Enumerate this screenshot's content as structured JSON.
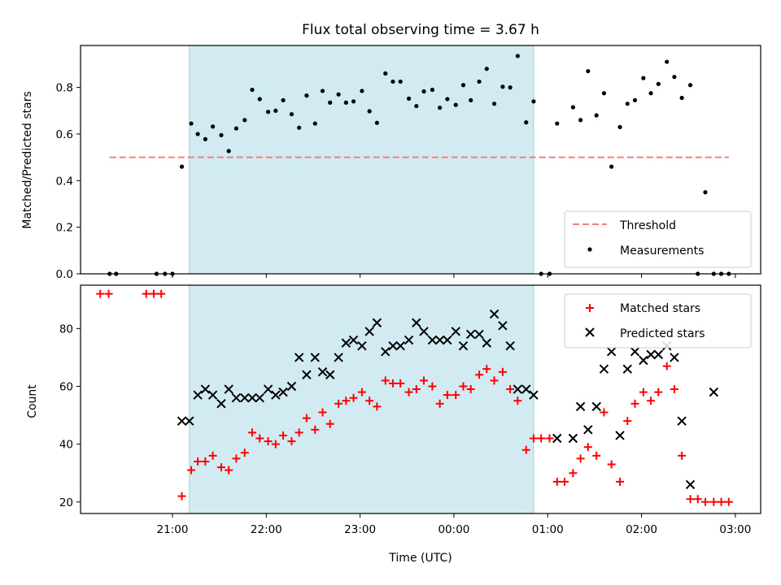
{
  "chart_data": {
    "title": "Flux total observing time = 3.67 h",
    "xlabel": "Time (UTC)",
    "x_unit": "hours of day, values above 24 are past midnight",
    "xlim": [
      20.02,
      27.27
    ],
    "xticks": [
      {
        "x": 21,
        "label": "21:00"
      },
      {
        "x": 22,
        "label": "22:00"
      },
      {
        "x": 23,
        "label": "23:00"
      },
      {
        "x": 24,
        "label": "00:00"
      },
      {
        "x": 25,
        "label": "01:00"
      },
      {
        "x": 26,
        "label": "02:00"
      },
      {
        "x": 27,
        "label": "03:00"
      }
    ],
    "observing_span": {
      "start": 21.18,
      "end": 24.85,
      "color": "#add8e6"
    },
    "panels": [
      {
        "type": "scatter",
        "ylabel": "Matched/Predicted stars",
        "ylim": [
          0,
          0.98
        ],
        "yticks": [
          "0.0",
          "0.2",
          "0.4",
          "0.6",
          "0.8"
        ],
        "yticks_values": [
          0,
          0.2,
          0.4,
          0.6,
          0.8
        ],
        "threshold": {
          "name": "Threshold",
          "value": 0.5,
          "x_start": 20.33,
          "x_end": 26.93,
          "color": "#f08080"
        },
        "legend": {
          "position": "lower-right",
          "entries": [
            "Threshold",
            "Measurements"
          ]
        },
        "series": [
          {
            "name": "Measurements",
            "color": "#000000",
            "points": [
              [
                20.33,
                0.0
              ],
              [
                20.4,
                0.0
              ],
              [
                20.83,
                0.0
              ],
              [
                20.92,
                0.0
              ],
              [
                21.0,
                0.0
              ],
              [
                21.1,
                0.46
              ],
              [
                21.2,
                0.645
              ],
              [
                21.27,
                0.6
              ],
              [
                21.35,
                0.578
              ],
              [
                21.43,
                0.632
              ],
              [
                21.52,
                0.595
              ],
              [
                21.6,
                0.527
              ],
              [
                21.68,
                0.624
              ],
              [
                21.77,
                0.66
              ],
              [
                21.85,
                0.79
              ],
              [
                21.93,
                0.75
              ],
              [
                22.02,
                0.695
              ],
              [
                22.1,
                0.7
              ],
              [
                22.18,
                0.745
              ],
              [
                22.27,
                0.685
              ],
              [
                22.35,
                0.627
              ],
              [
                22.43,
                0.765
              ],
              [
                22.52,
                0.645
              ],
              [
                22.6,
                0.785
              ],
              [
                22.68,
                0.735
              ],
              [
                22.77,
                0.77
              ],
              [
                22.85,
                0.735
              ],
              [
                22.93,
                0.74
              ],
              [
                23.02,
                0.785
              ],
              [
                23.1,
                0.698
              ],
              [
                23.18,
                0.648
              ],
              [
                23.27,
                0.86
              ],
              [
                23.35,
                0.825
              ],
              [
                23.43,
                0.825
              ],
              [
                23.52,
                0.752
              ],
              [
                23.6,
                0.72
              ],
              [
                23.68,
                0.783
              ],
              [
                23.77,
                0.79
              ],
              [
                23.85,
                0.713
              ],
              [
                23.93,
                0.75
              ],
              [
                24.02,
                0.725
              ],
              [
                24.1,
                0.81
              ],
              [
                24.18,
                0.745
              ],
              [
                24.27,
                0.825
              ],
              [
                24.35,
                0.88
              ],
              [
                24.43,
                0.73
              ],
              [
                24.52,
                0.803
              ],
              [
                24.6,
                0.8
              ],
              [
                24.68,
                0.935
              ],
              [
                24.77,
                0.65
              ],
              [
                24.85,
                0.74
              ],
              [
                24.93,
                0.0
              ],
              [
                25.02,
                0.0
              ],
              [
                25.1,
                0.645
              ],
              [
                25.27,
                0.715
              ],
              [
                25.35,
                0.66
              ],
              [
                25.43,
                0.87
              ],
              [
                25.52,
                0.68
              ],
              [
                25.6,
                0.775
              ],
              [
                25.68,
                0.46
              ],
              [
                25.77,
                0.63
              ],
              [
                25.85,
                0.73
              ],
              [
                25.93,
                0.745
              ],
              [
                26.02,
                0.84
              ],
              [
                26.1,
                0.775
              ],
              [
                26.18,
                0.815
              ],
              [
                26.27,
                0.91
              ],
              [
                26.35,
                0.845
              ],
              [
                26.43,
                0.755
              ],
              [
                26.52,
                0.81
              ],
              [
                26.6,
                0.0
              ],
              [
                26.68,
                0.35
              ],
              [
                26.77,
                0.0
              ],
              [
                26.85,
                0.0
              ],
              [
                26.93,
                0.0
              ]
            ]
          }
        ]
      },
      {
        "type": "scatter",
        "ylabel": "Count",
        "ylim": [
          16,
          95
        ],
        "yticks": [
          "20",
          "40",
          "60",
          "80"
        ],
        "yticks_values": [
          20,
          40,
          60,
          80
        ],
        "legend": {
          "position": "upper-right",
          "entries": [
            "Matched stars",
            "Predicted stars"
          ]
        },
        "series": [
          {
            "name": "Matched stars",
            "marker": "plus",
            "color": "#ff0000",
            "points": [
              [
                20.23,
                92
              ],
              [
                20.32,
                92
              ],
              [
                20.72,
                92
              ],
              [
                20.8,
                92
              ],
              [
                20.88,
                92
              ],
              [
                21.1,
                22
              ],
              [
                21.2,
                31
              ],
              [
                21.27,
                34
              ],
              [
                21.35,
                34
              ],
              [
                21.43,
                36
              ],
              [
                21.52,
                32
              ],
              [
                21.6,
                31
              ],
              [
                21.68,
                35
              ],
              [
                21.77,
                37
              ],
              [
                21.85,
                44
              ],
              [
                21.93,
                42
              ],
              [
                22.02,
                41
              ],
              [
                22.1,
                40
              ],
              [
                22.18,
                43
              ],
              [
                22.27,
                41
              ],
              [
                22.35,
                44
              ],
              [
                22.43,
                49
              ],
              [
                22.52,
                45
              ],
              [
                22.6,
                51
              ],
              [
                22.68,
                47
              ],
              [
                22.77,
                54
              ],
              [
                22.85,
                55
              ],
              [
                22.93,
                56
              ],
              [
                23.02,
                58
              ],
              [
                23.1,
                55
              ],
              [
                23.18,
                53
              ],
              [
                23.27,
                62
              ],
              [
                23.35,
                61
              ],
              [
                23.43,
                61
              ],
              [
                23.52,
                58
              ],
              [
                23.6,
                59
              ],
              [
                23.68,
                62
              ],
              [
                23.77,
                60
              ],
              [
                23.85,
                54
              ],
              [
                23.93,
                57
              ],
              [
                24.02,
                57
              ],
              [
                24.1,
                60
              ],
              [
                24.18,
                59
              ],
              [
                24.27,
                64
              ],
              [
                24.35,
                66
              ],
              [
                24.43,
                62
              ],
              [
                24.52,
                65
              ],
              [
                24.6,
                59
              ],
              [
                24.68,
                55
              ],
              [
                24.77,
                38
              ],
              [
                24.85,
                42
              ],
              [
                24.93,
                42
              ],
              [
                25.02,
                42
              ],
              [
                25.1,
                27
              ],
              [
                25.18,
                27
              ],
              [
                25.27,
                30
              ],
              [
                25.35,
                35
              ],
              [
                25.43,
                39
              ],
              [
                25.52,
                36
              ],
              [
                25.6,
                51
              ],
              [
                25.68,
                33
              ],
              [
                25.77,
                27
              ],
              [
                25.85,
                48
              ],
              [
                25.93,
                54
              ],
              [
                26.02,
                58
              ],
              [
                26.1,
                55
              ],
              [
                26.18,
                58
              ],
              [
                26.27,
                67
              ],
              [
                26.35,
                59
              ],
              [
                26.43,
                36
              ],
              [
                26.52,
                21
              ],
              [
                26.6,
                21
              ],
              [
                26.68,
                20
              ],
              [
                26.77,
                20
              ],
              [
                26.85,
                20
              ],
              [
                26.93,
                20
              ]
            ]
          },
          {
            "name": "Predicted stars",
            "marker": "x",
            "color": "#000000",
            "points": [
              [
                21.1,
                48
              ],
              [
                21.18,
                48
              ],
              [
                21.27,
                57
              ],
              [
                21.35,
                59
              ],
              [
                21.43,
                57
              ],
              [
                21.52,
                54
              ],
              [
                21.6,
                59
              ],
              [
                21.68,
                56
              ],
              [
                21.77,
                56
              ],
              [
                21.85,
                56
              ],
              [
                21.93,
                56
              ],
              [
                22.02,
                59
              ],
              [
                22.1,
                57
              ],
              [
                22.18,
                58
              ],
              [
                22.27,
                60
              ],
              [
                22.35,
                70
              ],
              [
                22.43,
                64
              ],
              [
                22.52,
                70
              ],
              [
                22.6,
                65
              ],
              [
                22.68,
                64
              ],
              [
                22.77,
                70
              ],
              [
                22.85,
                75
              ],
              [
                22.93,
                76
              ],
              [
                23.02,
                74
              ],
              [
                23.1,
                79
              ],
              [
                23.18,
                82
              ],
              [
                23.27,
                72
              ],
              [
                23.35,
                74
              ],
              [
                23.43,
                74
              ],
              [
                23.52,
                76
              ],
              [
                23.6,
                82
              ],
              [
                23.68,
                79
              ],
              [
                23.77,
                76
              ],
              [
                23.85,
                76
              ],
              [
                23.93,
                76
              ],
              [
                24.02,
                79
              ],
              [
                24.1,
                74
              ],
              [
                24.18,
                78
              ],
              [
                24.27,
                78
              ],
              [
                24.35,
                75
              ],
              [
                24.43,
                85
              ],
              [
                24.52,
                81
              ],
              [
                24.6,
                74
              ],
              [
                24.68,
                59
              ],
              [
                24.77,
                59
              ],
              [
                24.85,
                57
              ],
              [
                25.1,
                42
              ],
              [
                25.27,
                42
              ],
              [
                25.35,
                53
              ],
              [
                25.43,
                45
              ],
              [
                25.52,
                53
              ],
              [
                25.6,
                66
              ],
              [
                25.68,
                72
              ],
              [
                25.77,
                43
              ],
              [
                25.85,
                66
              ],
              [
                25.93,
                72
              ],
              [
                26.02,
                69
              ],
              [
                26.1,
                71
              ],
              [
                26.18,
                71
              ],
              [
                26.27,
                74
              ],
              [
                26.35,
                70
              ],
              [
                26.43,
                48
              ],
              [
                26.52,
                26
              ],
              [
                26.77,
                58
              ]
            ]
          }
        ]
      }
    ]
  }
}
